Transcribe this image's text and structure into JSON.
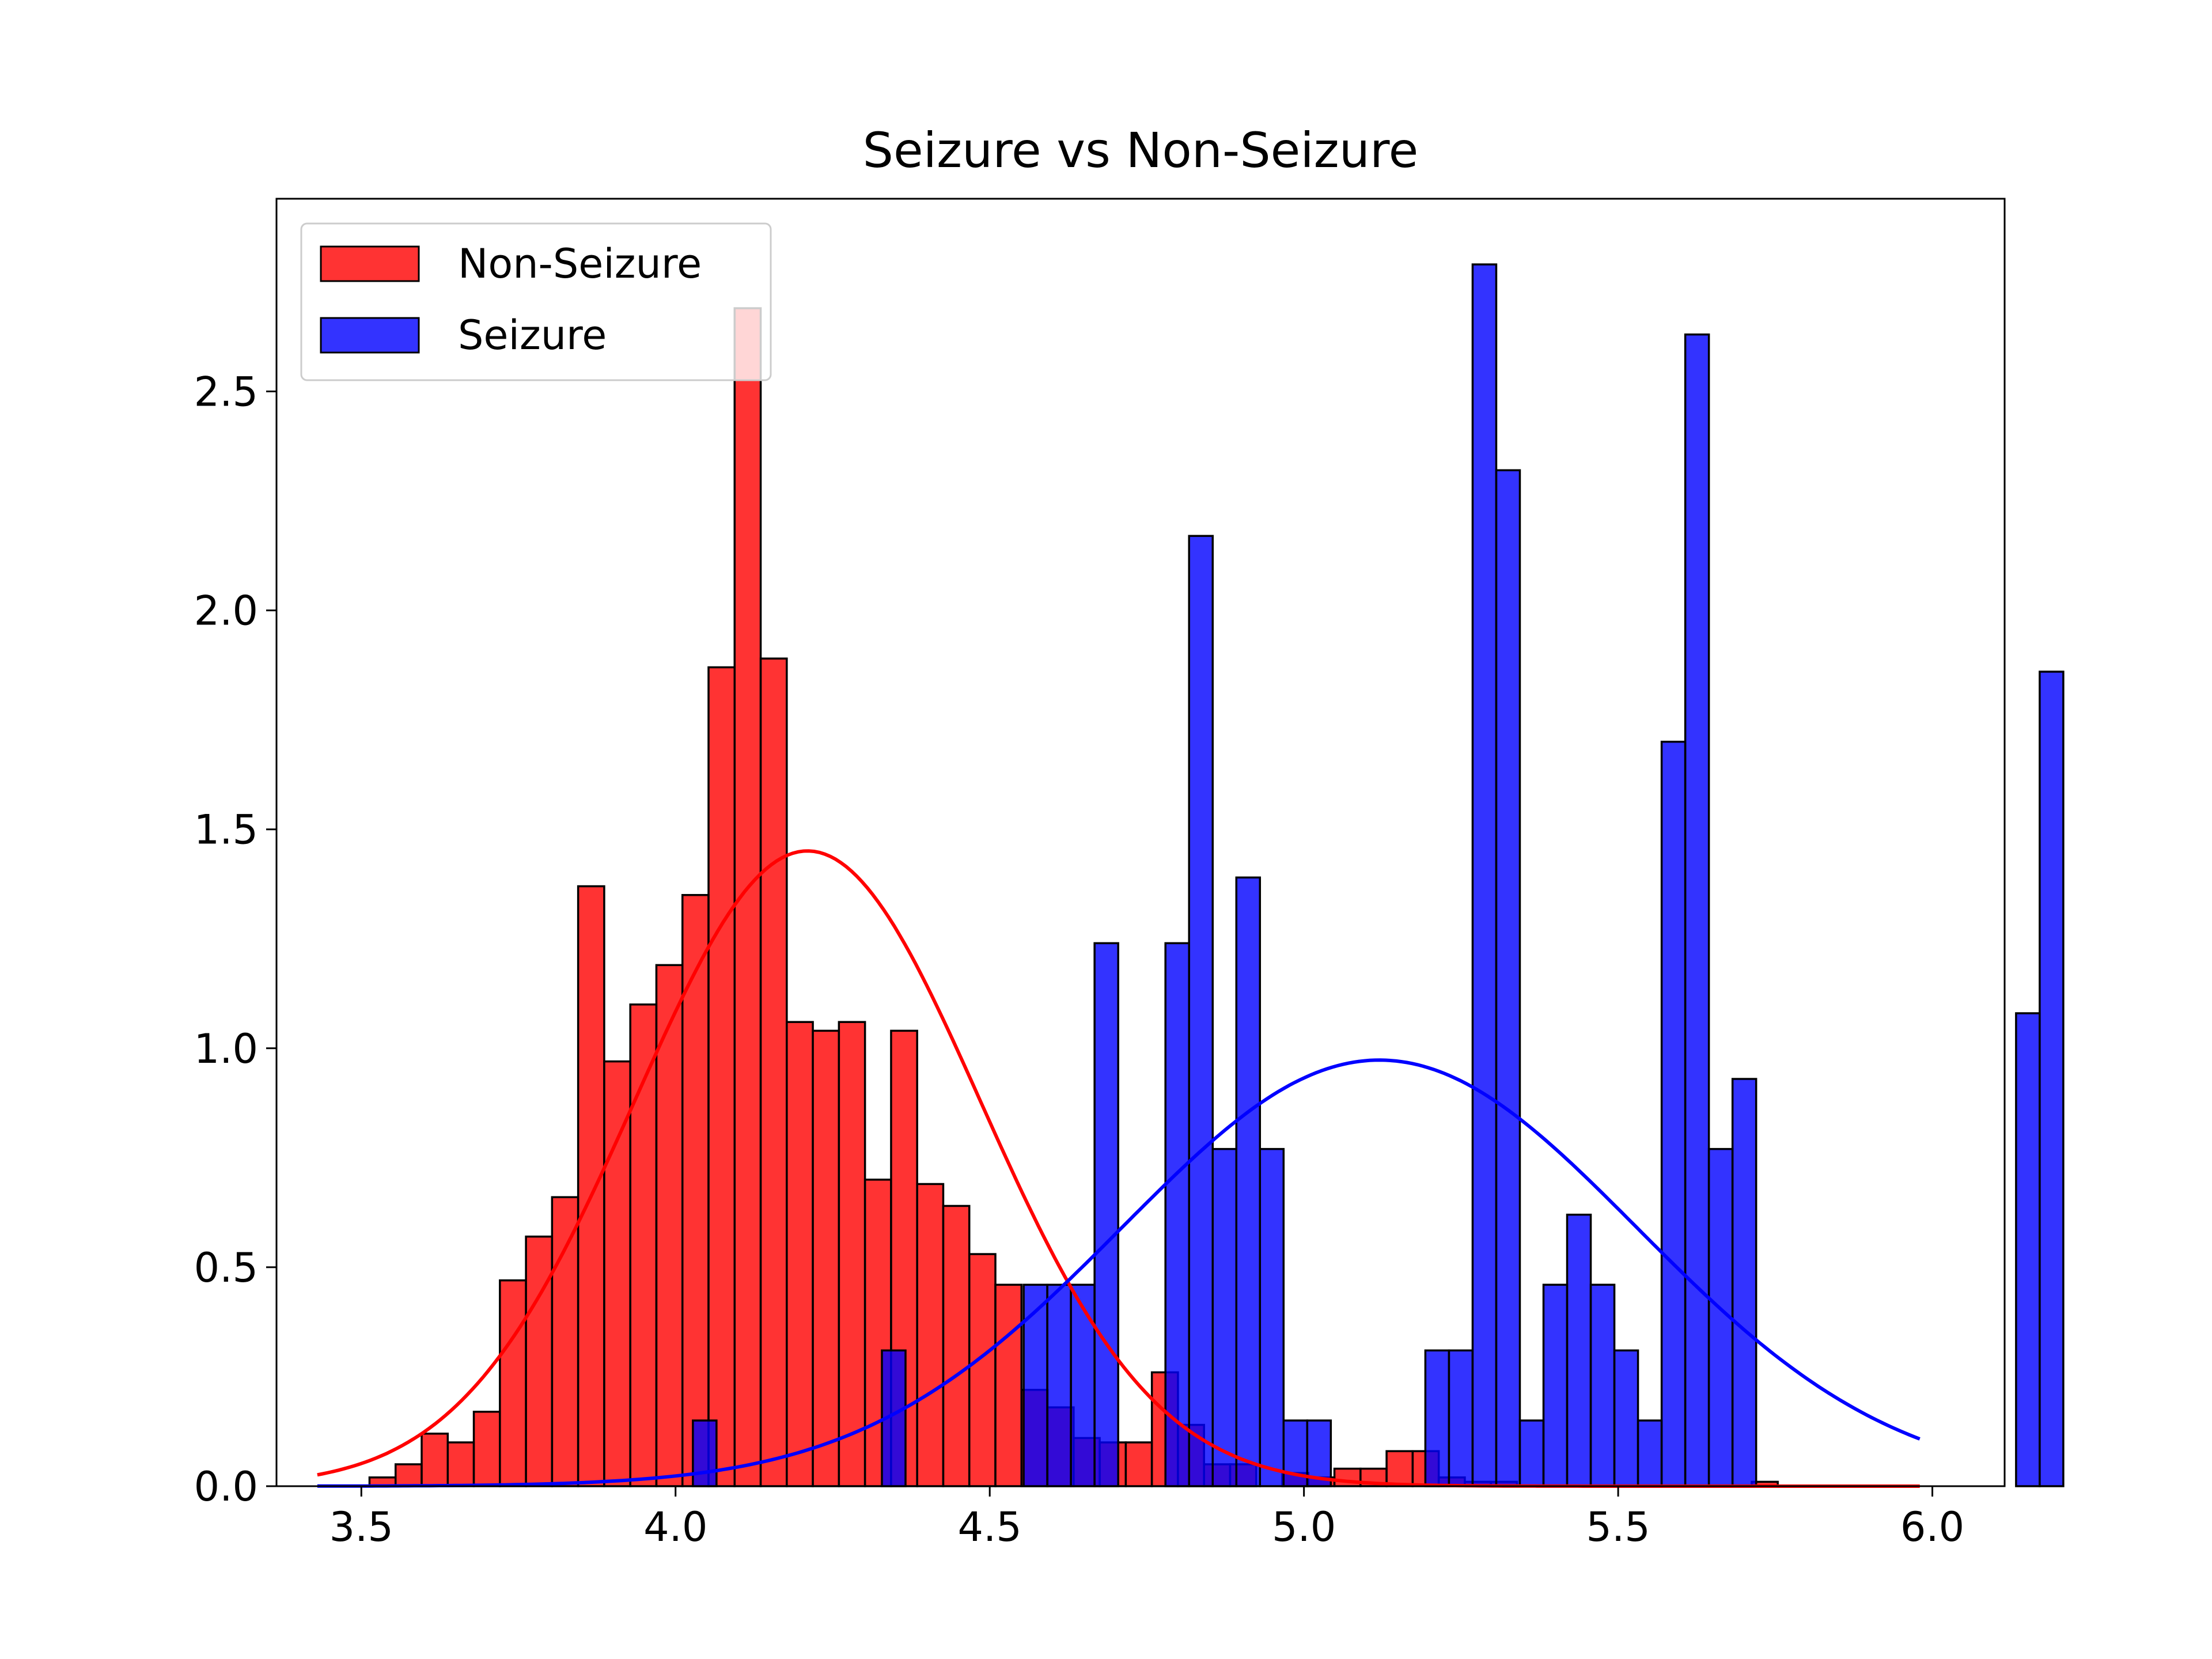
{
  "chart_data": {
    "type": "bar",
    "title": "Seizure vs Non-Seizure",
    "xlabel": "",
    "ylabel": "",
    "xlim": [
      3.365,
      6.115
    ],
    "ylim": [
      0.0,
      2.94
    ],
    "xticks": [
      3.5,
      4.0,
      4.5,
      5.0,
      5.5,
      6.0
    ],
    "xtick_labels": [
      "3.5",
      "4.0",
      "4.5",
      "5.0",
      "5.5",
      "6.0"
    ],
    "yticks": [
      0.0,
      0.5,
      1.0,
      1.5,
      2.0,
      2.5
    ],
    "ytick_labels": [
      "0.0",
      "0.5",
      "1.0",
      "1.5",
      "2.0",
      "2.5"
    ],
    "grid": false,
    "legend": {
      "position": "upper-left"
    },
    "series": [
      {
        "name": "Non-Seizure",
        "kind": "histogram",
        "color": "#ff0000",
        "opacity": 0.8,
        "edgecolor": "#000000",
        "bin_start": 3.43,
        "bin_width": 0.0415,
        "values": [
          0.0,
          0.0,
          0.02,
          0.05,
          0.12,
          0.1,
          0.17,
          0.47,
          0.57,
          0.66,
          1.37,
          0.97,
          1.1,
          1.19,
          1.35,
          1.87,
          2.69,
          1.89,
          1.06,
          1.04,
          1.06,
          0.7,
          1.04,
          0.69,
          0.64,
          0.53,
          0.46,
          0.22,
          0.18,
          0.11,
          0.1,
          0.1,
          0.26,
          0.14,
          0.05,
          0.05,
          0.0,
          0.03,
          0.02,
          0.04,
          0.04,
          0.08,
          0.08,
          0.02,
          0.01,
          0.01,
          0.0,
          0.0,
          0.0,
          0.0,
          0.0,
          0.0,
          0.0,
          0.0,
          0.0,
          0.01,
          0.0,
          0.0,
          0.0,
          0.0,
          0.0,
          0.0
        ]
      },
      {
        "name": "Seizure",
        "kind": "histogram",
        "color": "#0000ff",
        "opacity": 0.8,
        "edgecolor": "#000000",
        "bin_start": 3.99,
        "bin_width": 0.0376,
        "values": [
          0.0,
          0.15,
          0.0,
          0.0,
          0.0,
          0.0,
          0.0,
          0.0,
          0.0,
          0.31,
          0.0,
          0.0,
          0.0,
          0.0,
          0.0,
          0.46,
          0.46,
          0.46,
          1.24,
          0.0,
          0.0,
          1.24,
          2.17,
          0.77,
          1.39,
          0.77,
          0.15,
          0.15,
          0.0,
          0.0,
          0.0,
          0.0,
          0.31,
          0.31,
          2.79,
          2.32,
          0.15,
          0.46,
          0.62,
          0.46,
          0.31,
          0.15,
          1.7,
          2.63,
          0.77,
          0.93,
          0.0,
          0.0,
          0.0,
          0.0,
          0.0,
          0.0,
          0.0,
          0.0,
          0.0,
          0.0,
          0.0,
          1.08,
          1.86
        ]
      }
    ],
    "curves": [
      {
        "name": "Non-Seizure",
        "kind": "normal-pdf",
        "color": "#ff0000",
        "mean": 4.21,
        "std": 0.275,
        "x_range": [
          3.43,
          5.98
        ]
      },
      {
        "name": "Seizure",
        "kind": "normal-pdf",
        "color": "#0000ff",
        "mean": 5.12,
        "std": 0.41,
        "x_range": [
          3.43,
          5.98
        ]
      }
    ]
  }
}
